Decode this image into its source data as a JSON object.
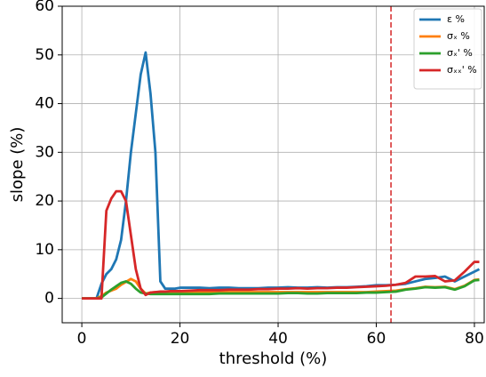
{
  "chart_data": {
    "type": "line",
    "xlabel": "threshold (%)",
    "ylabel": "slope (%)",
    "x": [
      0,
      1,
      2,
      3,
      4,
      5,
      6,
      7,
      8,
      9,
      10,
      11,
      12,
      13,
      14,
      15,
      16,
      17,
      18,
      19,
      20,
      22,
      24,
      26,
      28,
      30,
      32,
      34,
      36,
      38,
      40,
      42,
      44,
      46,
      48,
      50,
      52,
      54,
      56,
      58,
      60,
      62,
      64,
      66,
      68,
      70,
      72,
      74,
      76,
      78,
      80,
      81
    ],
    "series": [
      {
        "name": "ε %",
        "color": "#1f77b4",
        "values": [
          0,
          0,
          0,
          0,
          3,
          5,
          6,
          8,
          12,
          20,
          30,
          38,
          46,
          50.5,
          42,
          30,
          3.5,
          2,
          2,
          2,
          2.2,
          2.2,
          2.2,
          2.1,
          2.2,
          2.2,
          2.1,
          2.1,
          2.1,
          2.2,
          2.2,
          2.3,
          2.2,
          2.2,
          2.3,
          2.2,
          2.3,
          2.3,
          2.4,
          2.5,
          2.7,
          2.7,
          2.8,
          3,
          3.5,
          4,
          4.2,
          4.5,
          3.5,
          4.5,
          5.5,
          6
        ]
      },
      {
        "name": "σₓ %",
        "color": "#ff7f0e",
        "values": [
          0,
          0,
          0,
          0,
          0.5,
          1.2,
          1.6,
          2,
          2.8,
          3.4,
          4,
          3.5,
          2,
          1,
          1.2,
          1.3,
          1.3,
          1.3,
          1.3,
          1.3,
          1.3,
          1.3,
          1.3,
          1.3,
          1.3,
          1.3,
          1.3,
          1.3,
          1.3,
          1.3,
          1.3,
          1.3,
          1.3,
          1.3,
          1.3,
          1.3,
          1.3,
          1.3,
          1.3,
          1.3,
          1.4,
          1.5,
          1.6,
          1.9,
          2.1,
          2.4,
          2.3,
          2.4,
          1.9,
          2.6,
          3.8,
          3.9
        ]
      },
      {
        "name": "σₓ' %",
        "color": "#2ca02c",
        "values": [
          0,
          0,
          0,
          0,
          0.2,
          1,
          1.8,
          2.5,
          3.2,
          3.5,
          3,
          2,
          1.2,
          1,
          0.9,
          0.9,
          0.9,
          0.9,
          0.9,
          0.9,
          0.9,
          0.9,
          0.9,
          0.9,
          1,
          1,
          1,
          1,
          1,
          1,
          1,
          1.1,
          1.1,
          1,
          1,
          1.1,
          1.1,
          1.1,
          1.1,
          1.2,
          1.2,
          1.3,
          1.4,
          1.8,
          2,
          2.3,
          2.2,
          2.3,
          1.8,
          2.5,
          3.7,
          3.8
        ]
      },
      {
        "name": "σₓₓ' %",
        "color": "#d62728",
        "values": [
          0,
          0,
          0,
          0,
          0,
          18,
          20.5,
          22,
          22,
          20,
          13,
          6,
          2,
          0.7,
          1.2,
          1.3,
          1.4,
          1.4,
          1.5,
          1.5,
          1.5,
          1.6,
          1.7,
          1.7,
          1.7,
          1.8,
          1.8,
          1.8,
          1.9,
          1.9,
          2,
          2,
          2.1,
          2,
          2.1,
          2.1,
          2.2,
          2.2,
          2.3,
          2.4,
          2.5,
          2.6,
          2.8,
          3.2,
          4.5,
          4.5,
          4.6,
          3.5,
          3.7,
          5.5,
          7.5,
          7.5
        ]
      }
    ],
    "xlim": [
      -4,
      82
    ],
    "ylim": [
      -5,
      60
    ],
    "xticks": [
      0,
      20,
      40,
      60,
      80
    ],
    "yticks": [
      0,
      10,
      20,
      30,
      40,
      50,
      60
    ],
    "grid": true,
    "legend": "upper right",
    "vline": {
      "x": 63,
      "color": "#d62728"
    }
  }
}
